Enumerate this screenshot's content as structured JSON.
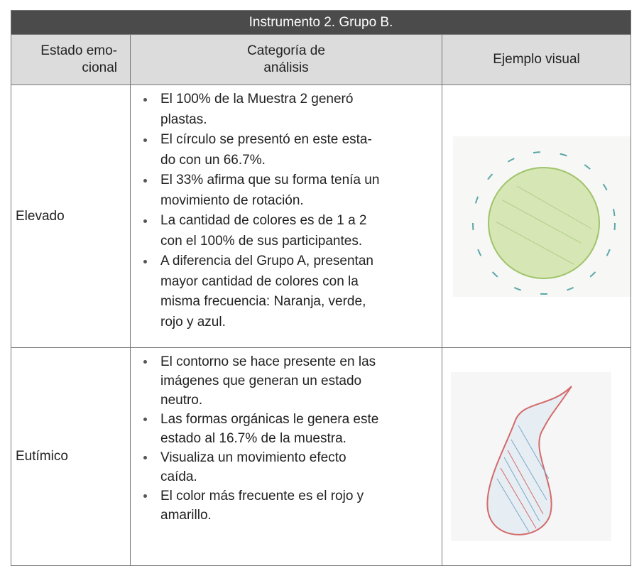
{
  "table": {
    "title": "Instrumento 2. Grupo B.",
    "headers": [
      [
        "Estado emo-",
        "cional"
      ],
      [
        "Categoría de",
        "análisis"
      ],
      [
        "Ejemplo visual"
      ]
    ],
    "rows": [
      {
        "state": "Elevado",
        "items": [
          [
            "El 100% de la Muestra 2 generó",
            "plastas."
          ],
          [
            "El círculo se presentó en este esta-",
            "do con un 66.7%."
          ],
          [
            "El 33% afirma que su forma tenía un",
            "movimiento de rotación."
          ],
          [
            "La cantidad de colores es de 1 a 2",
            "con el 100% de sus participantes."
          ],
          [
            "A diferencia del Grupo A, presentan",
            "mayor cantidad de colores con la",
            "misma frecuencia: Naranja, verde,",
            "rojo y azul."
          ]
        ]
      },
      {
        "state": "Eutímico",
        "items": [
          [
            "El contorno se hace presente en las",
            "imágenes que generan un estado",
            "neutro."
          ],
          [
            "Las formas orgánicas le genera este",
            "estado al 16.7% de la muestra."
          ],
          [
            "Visualiza un movimiento efecto",
            "caída."
          ],
          [
            "El color más frecuente es el rojo y",
            "amarillo."
          ]
        ]
      }
    ]
  }
}
